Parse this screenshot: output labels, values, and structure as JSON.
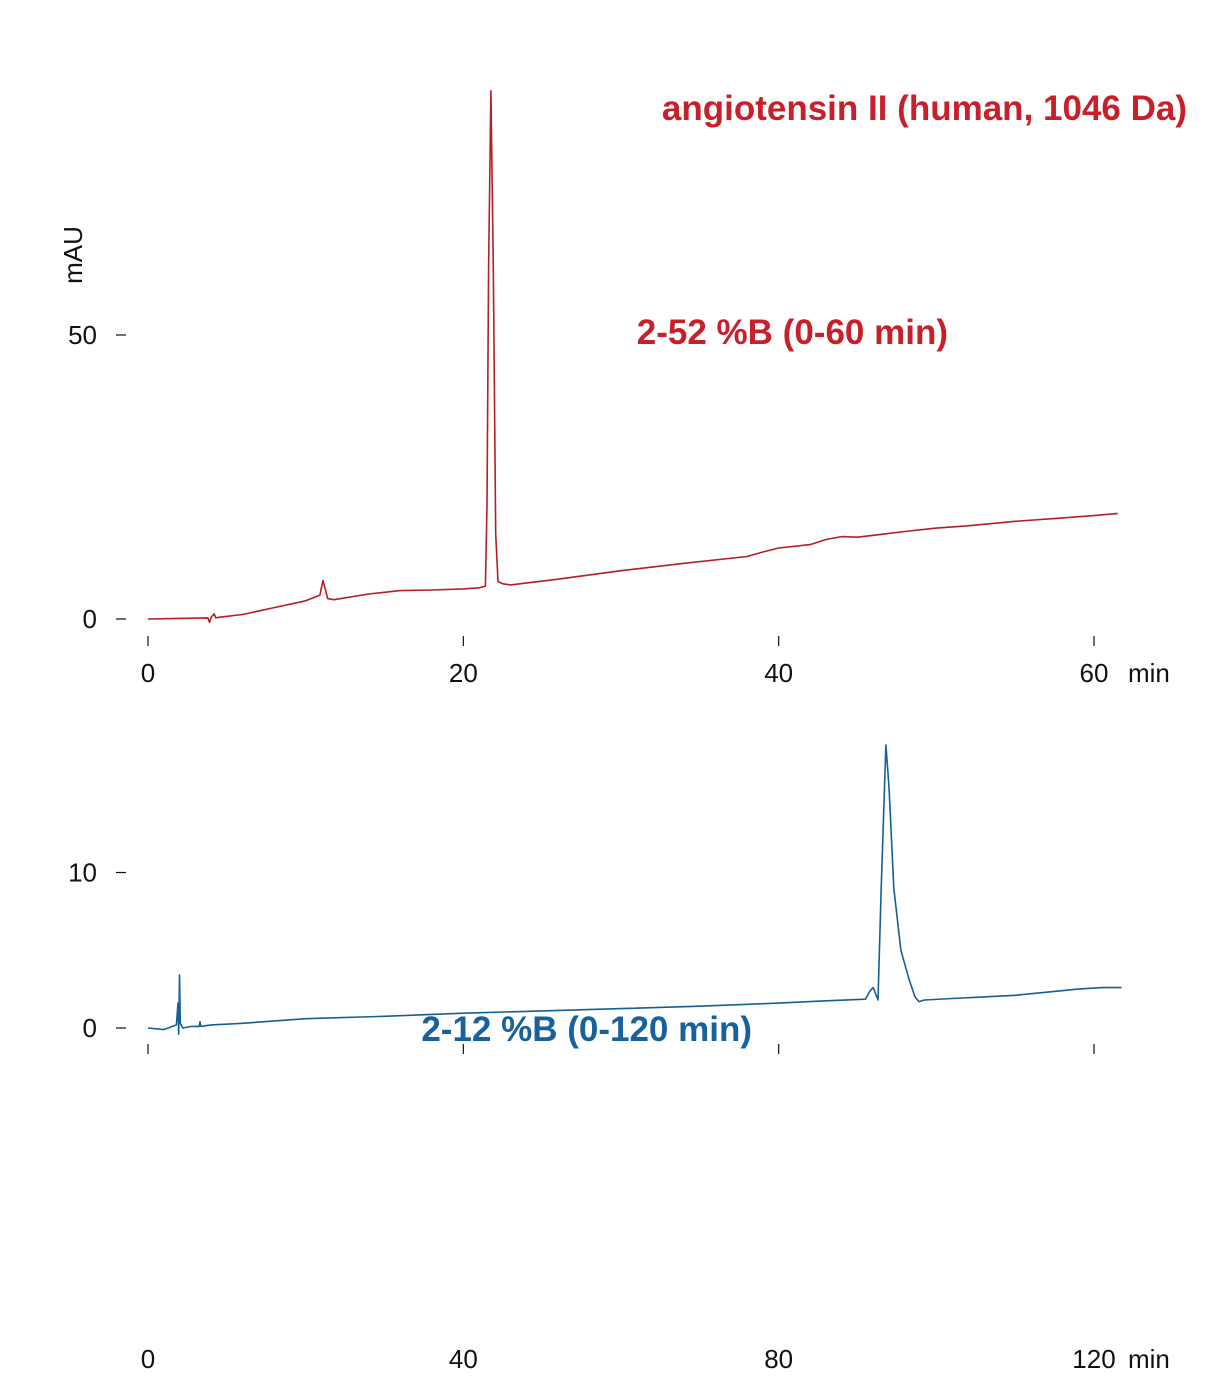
{
  "chart_data": [
    {
      "type": "line",
      "title": "angiotensin II (human, 1046 Da)",
      "annotation": "2-52 %B (0-60 min)",
      "ylabel": "mAU",
      "xunit": "min",
      "xlim": [
        0,
        62
      ],
      "ylim": [
        0,
        96
      ],
      "xticks": [
        0,
        20,
        40,
        60
      ],
      "yticks": [
        0,
        50
      ],
      "color": "#b41f24",
      "annotation_color": "#c8202a",
      "series": [
        {
          "x": [
            0,
            2,
            3.8,
            3.9,
            4.0,
            4.2,
            4.3,
            4.5,
            6,
            8,
            10,
            10.9,
            11.1,
            11.4,
            11.8,
            14,
            16,
            18,
            20,
            21,
            21.4,
            21.5,
            21.6,
            21.75,
            21.9,
            22.05,
            22.2,
            22.5,
            23,
            26,
            30,
            34,
            38,
            39,
            40,
            42,
            43,
            44,
            45,
            48,
            50,
            52,
            55,
            58,
            60,
            61.5
          ],
          "y": [
            0,
            0.1,
            0.2,
            -0.6,
            0.3,
            0.9,
            0.2,
            0.3,
            0.8,
            2.0,
            3.2,
            4.2,
            6.8,
            3.6,
            3.4,
            4.4,
            5.0,
            5.1,
            5.3,
            5.5,
            5.8,
            20,
            62,
            93,
            62,
            15,
            6.6,
            6.2,
            6.0,
            7.0,
            8.5,
            9.8,
            11.0,
            11.8,
            12.5,
            13.1,
            14.0,
            14.5,
            14.4,
            15.4,
            16.0,
            16.4,
            17.2,
            17.8,
            18.2,
            18.6
          ]
        }
      ]
    },
    {
      "type": "line",
      "annotation": "2-12 %B (0-120 min)",
      "xunit": "min",
      "xlim": [
        0,
        124
      ],
      "ylim": [
        0,
        18
      ],
      "xticks": [
        0,
        40,
        80,
        120
      ],
      "yticks": [
        0,
        10
      ],
      "color": "#165f95",
      "annotation_color": "#17619d",
      "series": [
        {
          "x": [
            0,
            2,
            3.6,
            3.8,
            3.9,
            4.0,
            4.1,
            4.4,
            5.5,
            6.5,
            6.6,
            6.7,
            8,
            12,
            20,
            30,
            40,
            50,
            60,
            70,
            80,
            86,
            91,
            91.6,
            92.0,
            92.6,
            93.0,
            93.6,
            94.0,
            94.6,
            95.5,
            96.5,
            97.3,
            97.8,
            98.5,
            102,
            106,
            110,
            114,
            118,
            121,
            123.5
          ],
          "y": [
            0,
            -0.1,
            0.2,
            1.6,
            -0.4,
            3.4,
            0.3,
            0,
            0.1,
            0.1,
            0.4,
            0.1,
            0.2,
            0.3,
            0.6,
            0.75,
            0.95,
            1.1,
            1.25,
            1.4,
            1.6,
            1.75,
            1.85,
            2.4,
            2.6,
            1.8,
            9,
            18.2,
            15.5,
            9.0,
            5.0,
            3.2,
            2.0,
            1.7,
            1.8,
            1.9,
            2.0,
            2.1,
            2.3,
            2.5,
            2.6,
            2.6
          ]
        }
      ]
    }
  ]
}
